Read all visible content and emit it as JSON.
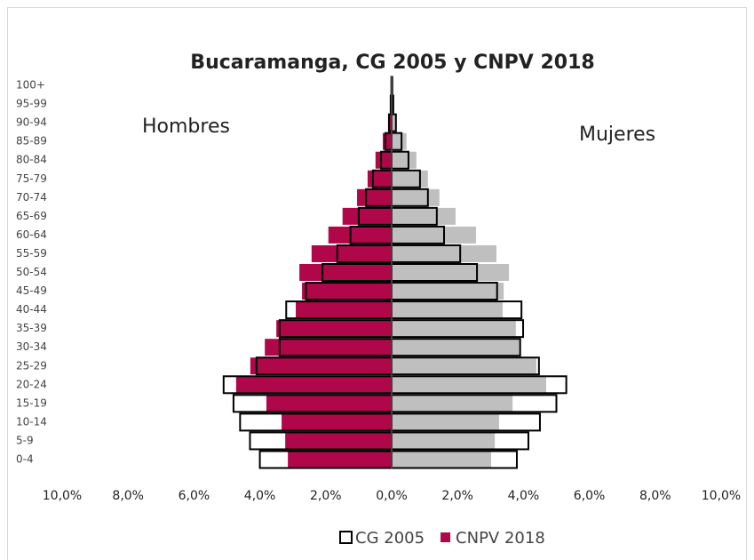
{
  "chart_data": {
    "type": "pyramid",
    "title": "Bucaramanga, CG 2005 y CNPV 2018",
    "annotations": [
      "Hombres",
      "Mujeres"
    ],
    "categories": [
      "0-4",
      "5-9",
      "10-14",
      "15-19",
      "20-24",
      "25-29",
      "30-34",
      "35-39",
      "40-44",
      "45-49",
      "50-54",
      "55-59",
      "60-64",
      "65-69",
      "70-74",
      "75-79",
      "80-84",
      "85-89",
      "90-94",
      "95-99",
      "100+"
    ],
    "series": [
      {
        "name": "CG 2005",
        "color": "#ffffff",
        "stroke": "#000000",
        "style": "outline",
        "hombres": [
          -4.0,
          -4.3,
          -4.6,
          -4.8,
          -5.1,
          -4.1,
          -3.4,
          -3.4,
          -3.2,
          -2.6,
          -2.1,
          -1.65,
          -1.25,
          -1.0,
          -0.78,
          -0.57,
          -0.32,
          -0.19,
          -0.08,
          -0.03,
          -0.01
        ],
        "mujeres": [
          3.8,
          4.15,
          4.5,
          5.0,
          5.3,
          4.47,
          3.9,
          3.99,
          3.94,
          3.2,
          2.59,
          2.08,
          1.59,
          1.37,
          1.1,
          0.86,
          0.51,
          0.3,
          0.13,
          0.05,
          0.02
        ]
      },
      {
        "name": "CNPV 2018",
        "color": "#b0064a",
        "color_mujeres": "#bfbfbf",
        "style": "fill",
        "hombres": [
          -3.15,
          -3.23,
          -3.34,
          -3.8,
          -4.72,
          -4.29,
          -3.85,
          -3.5,
          -2.91,
          -2.72,
          -2.8,
          -2.43,
          -1.92,
          -1.49,
          -1.05,
          -0.73,
          -0.49,
          -0.27,
          -0.11,
          -0.04,
          -0.01
        ],
        "mujeres": [
          3.02,
          3.13,
          3.26,
          3.67,
          4.69,
          4.39,
          3.91,
          3.77,
          3.37,
          3.4,
          3.56,
          3.18,
          2.56,
          1.94,
          1.45,
          1.1,
          0.75,
          0.45,
          0.15,
          0.06,
          0.02
        ]
      }
    ],
    "xlim": [
      -10,
      10
    ],
    "xticks": [
      {
        "value": -10,
        "label": "10,0%"
      },
      {
        "value": -8,
        "label": "8,0%"
      },
      {
        "value": -6,
        "label": "6,0%"
      },
      {
        "value": -4,
        "label": "4,0%"
      },
      {
        "value": -2,
        "label": "2,0%"
      },
      {
        "value": 0,
        "label": "0,0%"
      },
      {
        "value": 2,
        "label": "2,0%"
      },
      {
        "value": 4,
        "label": "4,0%"
      },
      {
        "value": 6,
        "label": "6,0%"
      },
      {
        "value": 8,
        "label": "8,0%"
      },
      {
        "value": 10,
        "label": "10,0%"
      }
    ],
    "legend": "bottom"
  }
}
